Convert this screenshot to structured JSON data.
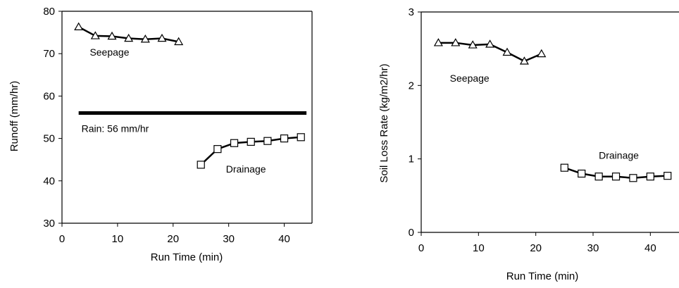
{
  "chart_data": [
    {
      "type": "line",
      "title": "",
      "xlabel": "Run Time (min)",
      "ylabel": "Runoff (mm/hr)",
      "xlim": [
        0,
        45
      ],
      "ylim": [
        30,
        80
      ],
      "xticks": [
        0,
        10,
        20,
        30,
        40
      ],
      "yticks": [
        30,
        40,
        50,
        60,
        70,
        80
      ],
      "grid": false,
      "series": [
        {
          "marker": "triangle",
          "x": [
            3,
            6,
            9,
            12,
            15,
            18,
            21
          ],
          "y": [
            76.3,
            74.2,
            74.1,
            73.6,
            73.4,
            73.6,
            72.8
          ]
        },
        {
          "marker": "square",
          "x": [
            25,
            28,
            31,
            34,
            37,
            40,
            43
          ],
          "y": [
            43.8,
            47.5,
            48.9,
            49.2,
            49.4,
            50.0,
            50.3
          ]
        }
      ],
      "hlines": [
        {
          "y": 56,
          "x_from": 3,
          "x_to": 44
        }
      ],
      "annotations": [
        {
          "text": "Seepage",
          "x": 5,
          "y": 69.5
        },
        {
          "text": "Rain: 56 mm/hr",
          "x": 3.5,
          "y": 51.5
        },
        {
          "text": "Drainage",
          "x": 29.5,
          "y": 42
        }
      ]
    },
    {
      "type": "line",
      "title": "",
      "xlabel": "Run Time (min)",
      "ylabel": "Soil Loss Rate (kg/m2/hr)",
      "xlim": [
        0,
        45
      ],
      "ylim": [
        0,
        3
      ],
      "xticks": [
        0,
        10,
        20,
        30,
        40
      ],
      "yticks": [
        0,
        1,
        2,
        3
      ],
      "grid": false,
      "series": [
        {
          "marker": "triangle",
          "x": [
            3,
            6,
            9,
            12,
            15,
            18,
            21
          ],
          "y": [
            2.58,
            2.58,
            2.55,
            2.56,
            2.45,
            2.33,
            2.43
          ]
        },
        {
          "marker": "square",
          "x": [
            25,
            28,
            31,
            34,
            37,
            40,
            43
          ],
          "y": [
            0.88,
            0.8,
            0.76,
            0.76,
            0.74,
            0.76,
            0.77
          ]
        }
      ],
      "annotations": [
        {
          "text": "Seepage",
          "x": 5,
          "y": 2.05
        },
        {
          "text": "Drainage",
          "x": 31,
          "y": 1.0
        }
      ]
    }
  ]
}
